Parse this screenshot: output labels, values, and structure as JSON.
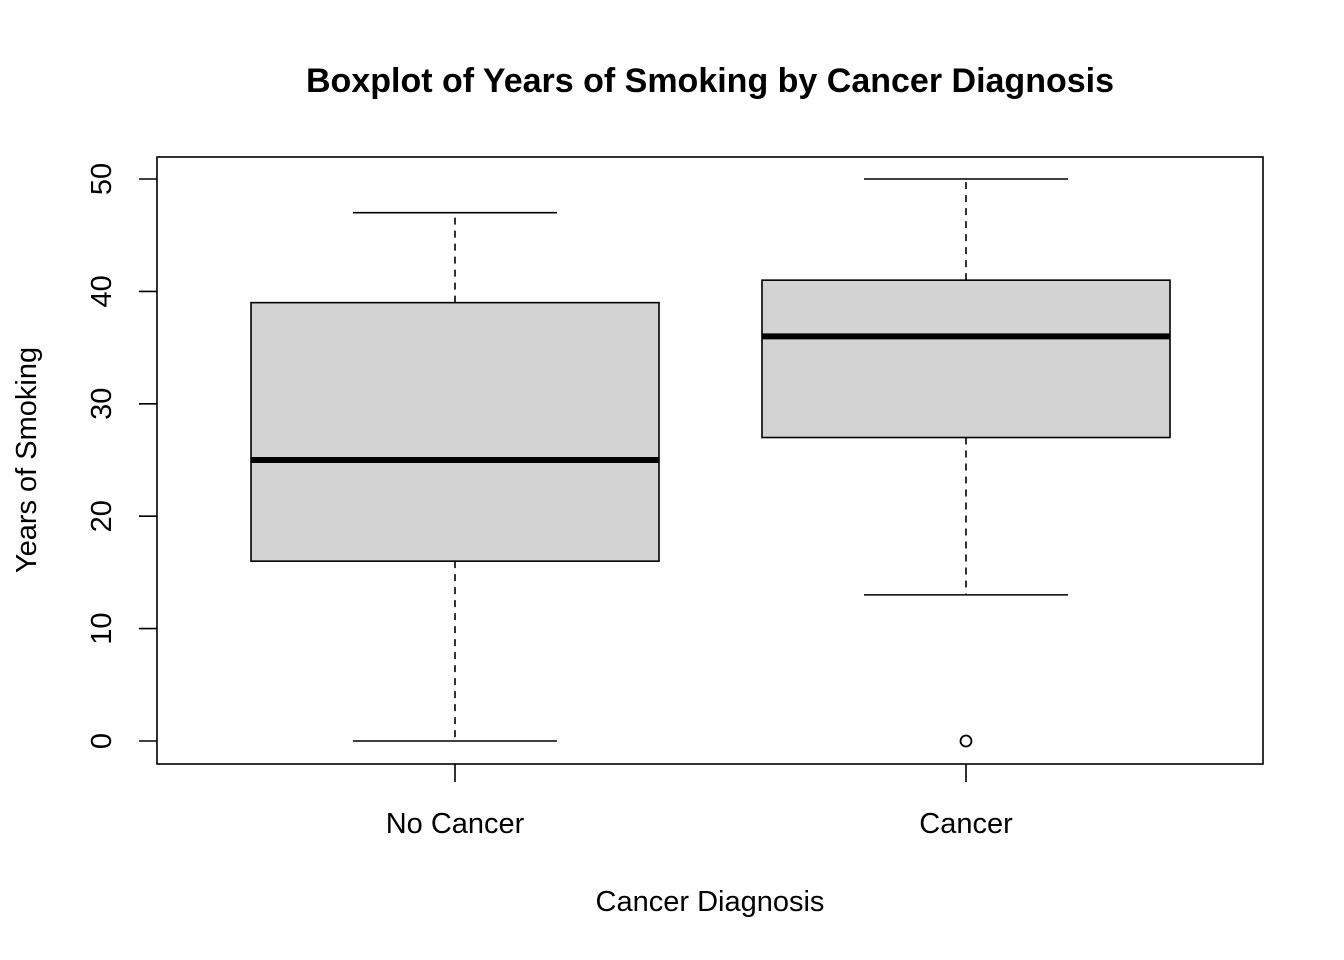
{
  "chart_data": {
    "type": "boxplot",
    "title": "Boxplot of Years of Smoking by Cancer Diagnosis",
    "xlabel": "Cancer Diagnosis",
    "ylabel": "Years of Smoking",
    "categories": [
      "No Cancer",
      "Cancer"
    ],
    "ylim": [
      -2,
      52
    ],
    "yticks": [
      0,
      10,
      20,
      30,
      40,
      50
    ],
    "grid": false,
    "box_fill": "#d3d3d3",
    "line_color": "#000000",
    "boxes": [
      {
        "category": "No Cancer",
        "whisker_low": 0,
        "q1": 16,
        "median": 25,
        "q3": 39,
        "whisker_high": 47,
        "outliers": []
      },
      {
        "category": "Cancer",
        "whisker_low": 13,
        "q1": 27,
        "median": 36,
        "q3": 41,
        "whisker_high": 50,
        "outliers": [
          0
        ]
      }
    ]
  }
}
